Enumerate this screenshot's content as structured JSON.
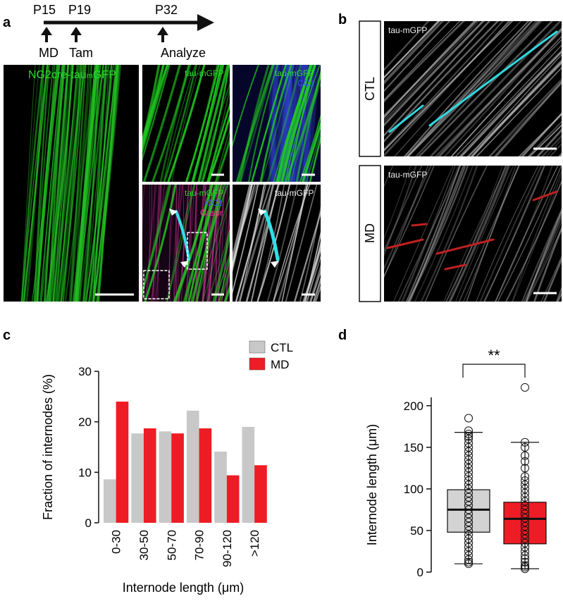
{
  "panel_a": {
    "label": "a",
    "timeline": {
      "ticks": [
        "P15",
        "P19",
        "P32"
      ],
      "events": [
        "MD",
        "Tam",
        "Analyze"
      ]
    },
    "main_image": {
      "label_parts": [
        "NG2cre-tau",
        "m",
        "GFP"
      ]
    },
    "images": [
      {
        "labels": [
          "tau-mGFP"
        ]
      },
      {
        "labels": [
          "tau-mGFP",
          "CC1"
        ]
      },
      {
        "labels": [
          "tau-mGFP",
          "CC1",
          "Caspr"
        ]
      },
      {
        "labels": [
          "tau-mGFP"
        ]
      }
    ]
  },
  "panel_b": {
    "label": "b",
    "rows": [
      {
        "condition": "CTL",
        "image_label": "tau-mGFP"
      },
      {
        "condition": "MD",
        "image_label": "tau-mGFP"
      }
    ]
  },
  "chart_data": [
    {
      "type": "bar",
      "label": "c",
      "y_label": "Fraction of internodes (%)",
      "x_label": "Internode length (μm)",
      "categories": [
        "0-30",
        "30-50",
        "50-70",
        "70-90",
        "90-120",
        ">120"
      ],
      "series": [
        {
          "name": "CTL",
          "color": "#c8c8c8",
          "values": [
            8.6,
            17.7,
            18.1,
            22.2,
            14.1,
            19.0
          ]
        },
        {
          "name": "MD",
          "color": "#ee1c24",
          "values": [
            24.0,
            18.7,
            17.7,
            18.7,
            9.4,
            11.4
          ]
        }
      ],
      "ylim": [
        0,
        30
      ],
      "yticks": [
        0,
        10,
        20,
        30
      ],
      "legend": "top-right"
    },
    {
      "type": "box",
      "label": "d",
      "y_label": "Internode length (μm)",
      "annotation": "**",
      "boxes": [
        {
          "color": "#d3d3d3",
          "whisker_low": 10,
          "q1": 48,
          "median": 75,
          "q3": 99,
          "whisker_high": 168,
          "points": [
            10,
            12,
            15,
            20,
            25,
            30,
            35,
            40,
            45,
            50,
            55,
            60,
            65,
            70,
            75,
            80,
            85,
            90,
            95,
            100,
            105,
            110,
            115,
            120,
            125,
            130,
            135,
            140,
            145,
            150,
            155,
            160,
            163,
            166,
            170,
            185
          ]
        },
        {
          "color": "#ee1c24",
          "whisker_low": 4,
          "q1": 34,
          "median": 64,
          "q3": 84,
          "whisker_high": 156,
          "points": [
            4,
            6,
            8,
            12,
            16,
            20,
            25,
            30,
            35,
            40,
            45,
            50,
            55,
            60,
            65,
            70,
            75,
            80,
            85,
            90,
            95,
            100,
            105,
            110,
            115,
            125,
            133,
            140,
            150,
            156,
            222
          ]
        }
      ],
      "ylim": [
        0,
        210
      ],
      "yticks": [
        0,
        50,
        100,
        150,
        200
      ]
    }
  ]
}
